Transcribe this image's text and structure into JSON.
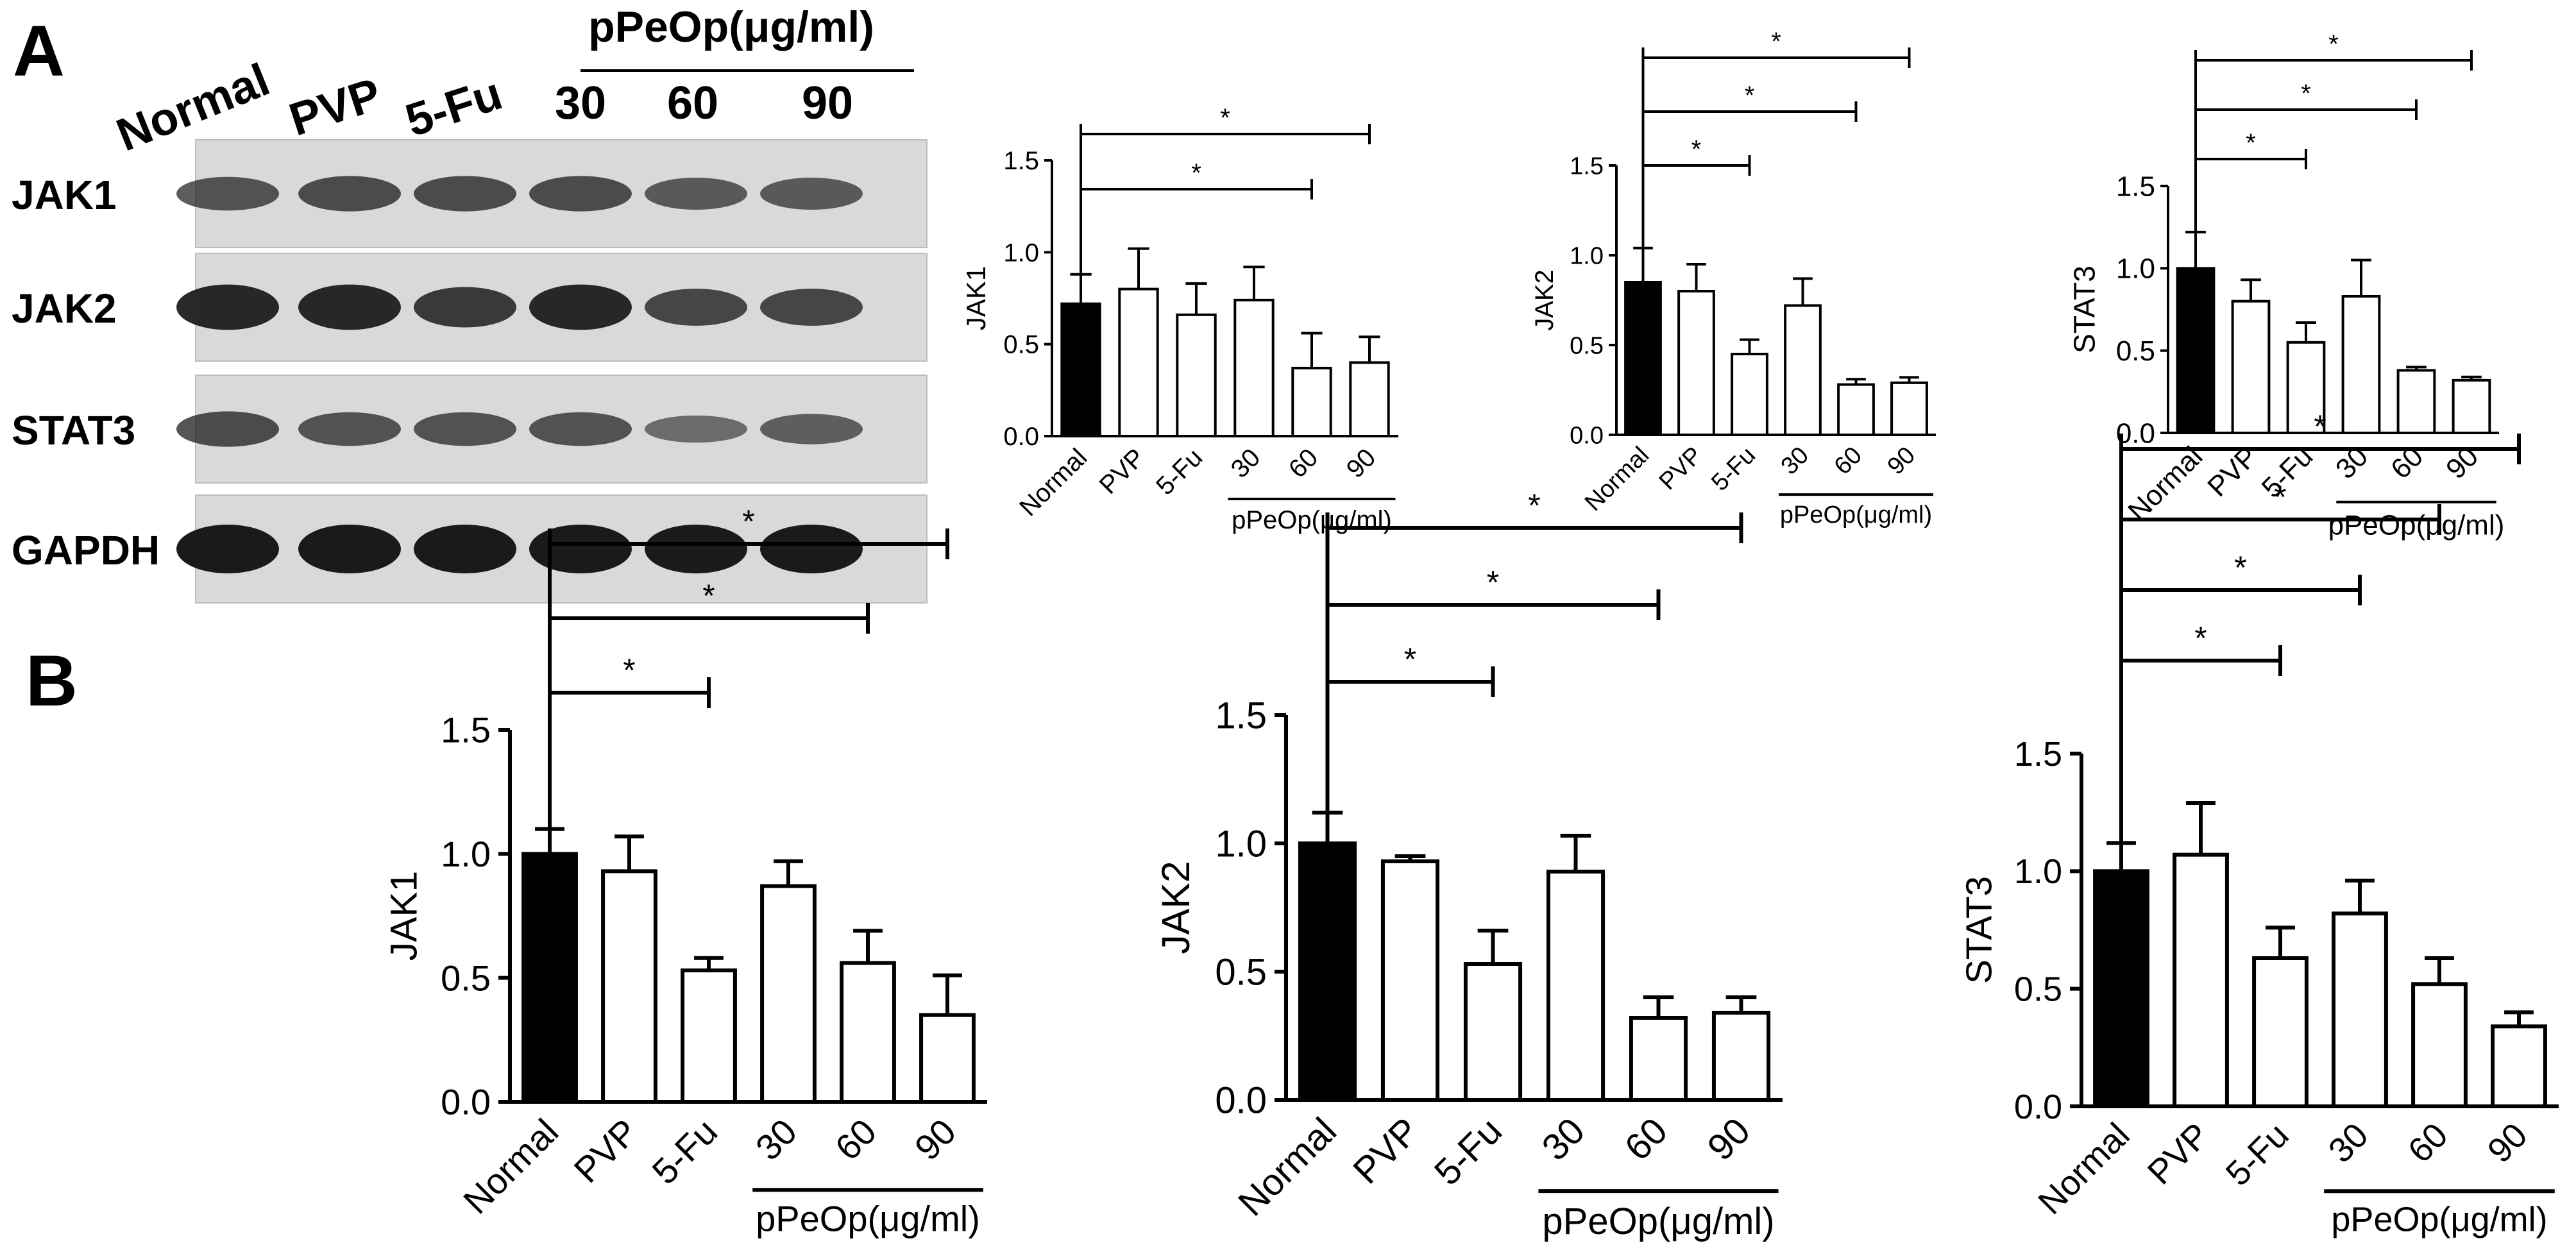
{
  "panels": {
    "a": "A",
    "b": "B"
  },
  "western_blot": {
    "lanes": [
      "Normal",
      "PVP",
      "5-Fu",
      "30",
      "60",
      "90"
    ],
    "group_label": "pPeOp(μg/ml)",
    "rows": [
      {
        "label": "JAK1",
        "band_strength": [
          0.55,
          0.6,
          0.6,
          0.6,
          0.5,
          0.5
        ]
      },
      {
        "label": "JAK2",
        "band_strength": [
          0.9,
          0.9,
          0.75,
          0.9,
          0.65,
          0.65
        ]
      },
      {
        "label": "STAT3",
        "band_strength": [
          0.6,
          0.55,
          0.55,
          0.55,
          0.35,
          0.45
        ]
      },
      {
        "label": "GAPDH",
        "band_strength": [
          1.0,
          1.0,
          1.0,
          1.0,
          1.0,
          1.0
        ]
      }
    ]
  },
  "chart_data": [
    {
      "type": "bar",
      "panel": "A",
      "categories": [
        "Normal",
        "PVP",
        "5-Fu",
        "30",
        "60",
        "90"
      ],
      "group_label": "pPeOp(μg/ml)",
      "ylabel": "JAK1",
      "ylim": [
        0,
        1.5
      ],
      "yticks": [
        "0.0",
        "0.5",
        "1.0",
        "1.5"
      ],
      "values": [
        0.72,
        0.8,
        0.66,
        0.74,
        0.37,
        0.4
      ],
      "errors": [
        0.16,
        0.22,
        0.17,
        0.18,
        0.19,
        0.14
      ],
      "significance": [
        {
          "from": "Normal",
          "to": "60",
          "label": "*"
        },
        {
          "from": "Normal",
          "to": "90",
          "label": "*"
        }
      ]
    },
    {
      "type": "bar",
      "panel": "A",
      "categories": [
        "Normal",
        "PVP",
        "5-Fu",
        "30",
        "60",
        "90"
      ],
      "group_label": "pPeOp(μg/ml)",
      "ylabel": "JAK2",
      "ylim": [
        0,
        1.5
      ],
      "yticks": [
        "0.0",
        "0.5",
        "1.0",
        "1.5"
      ],
      "values": [
        0.85,
        0.8,
        0.45,
        0.72,
        0.28,
        0.29
      ],
      "errors": [
        0.19,
        0.15,
        0.08,
        0.15,
        0.03,
        0.03
      ],
      "significance": [
        {
          "from": "Normal",
          "to": "5-Fu",
          "label": "*"
        },
        {
          "from": "Normal",
          "to": "60",
          "label": "*"
        },
        {
          "from": "Normal",
          "to": "90",
          "label": "*"
        }
      ]
    },
    {
      "type": "bar",
      "panel": "A",
      "categories": [
        "Normal",
        "PVP",
        "5-Fu",
        "30",
        "60",
        "90"
      ],
      "group_label": "pPeOp(μg/ml)",
      "ylabel": "STAT3",
      "ylim": [
        0,
        1.5
      ],
      "yticks": [
        "0.0",
        "0.5",
        "1.0",
        "1.5"
      ],
      "values": [
        1.0,
        0.8,
        0.55,
        0.83,
        0.38,
        0.32
      ],
      "errors": [
        0.22,
        0.13,
        0.12,
        0.22,
        0.02,
        0.02
      ],
      "significance": [
        {
          "from": "Normal",
          "to": "5-Fu",
          "label": "*"
        },
        {
          "from": "Normal",
          "to": "60",
          "label": "*"
        },
        {
          "from": "Normal",
          "to": "90",
          "label": "*"
        }
      ]
    },
    {
      "type": "bar",
      "panel": "B",
      "categories": [
        "Normal",
        "PVP",
        "5-Fu",
        "30",
        "60",
        "90"
      ],
      "group_label": "pPeOp(μg/ml)",
      "ylabel": "JAK1",
      "ylim": [
        0,
        1.5
      ],
      "yticks": [
        "0.0",
        "0.5",
        "1.0",
        "1.5"
      ],
      "values": [
        1.0,
        0.93,
        0.53,
        0.87,
        0.56,
        0.35
      ],
      "errors": [
        0.1,
        0.14,
        0.05,
        0.1,
        0.13,
        0.16
      ],
      "significance": [
        {
          "from": "Normal",
          "to": "5-Fu",
          "label": "*"
        },
        {
          "from": "Normal",
          "to": "60",
          "label": "*"
        },
        {
          "from": "Normal",
          "to": "90",
          "label": "*"
        }
      ]
    },
    {
      "type": "bar",
      "panel": "B",
      "categories": [
        "Normal",
        "PVP",
        "5-Fu",
        "30",
        "60",
        "90"
      ],
      "group_label": "pPeOp(μg/ml)",
      "ylabel": "JAK2",
      "ylim": [
        0,
        1.5
      ],
      "yticks": [
        "0.0",
        "0.5",
        "1.0",
        "1.5"
      ],
      "values": [
        1.0,
        0.93,
        0.53,
        0.89,
        0.32,
        0.34
      ],
      "errors": [
        0.12,
        0.02,
        0.13,
        0.14,
        0.08,
        0.06
      ],
      "significance": [
        {
          "from": "Normal",
          "to": "5-Fu",
          "label": "*"
        },
        {
          "from": "Normal",
          "to": "60",
          "label": "*"
        },
        {
          "from": "Normal",
          "to": "90",
          "label": "*"
        }
      ]
    },
    {
      "type": "bar",
      "panel": "B",
      "categories": [
        "Normal",
        "PVP",
        "5-Fu",
        "30",
        "60",
        "90"
      ],
      "group_label": "pPeOp(μg/ml)",
      "ylabel": "STAT3",
      "ylim": [
        0,
        1.5
      ],
      "yticks": [
        "0.0",
        "0.5",
        "1.0",
        "1.5"
      ],
      "values": [
        1.0,
        1.07,
        0.63,
        0.82,
        0.52,
        0.34
      ],
      "errors": [
        0.12,
        0.22,
        0.13,
        0.14,
        0.11,
        0.06
      ],
      "significance": [
        {
          "from": "Normal",
          "to": "5-Fu",
          "label": "*"
        },
        {
          "from": "Normal",
          "to": "30",
          "label": "*"
        },
        {
          "from": "Normal",
          "to": "60",
          "label": "*"
        },
        {
          "from": "Normal",
          "to": "90",
          "label": "*"
        }
      ]
    }
  ],
  "style": {
    "control_bar_color": "#000000",
    "treatment_bar_color": "#ffffff",
    "stroke_color": "#000000",
    "blot_background": "#d9d9d9",
    "band_color": "#1a1a1a"
  }
}
